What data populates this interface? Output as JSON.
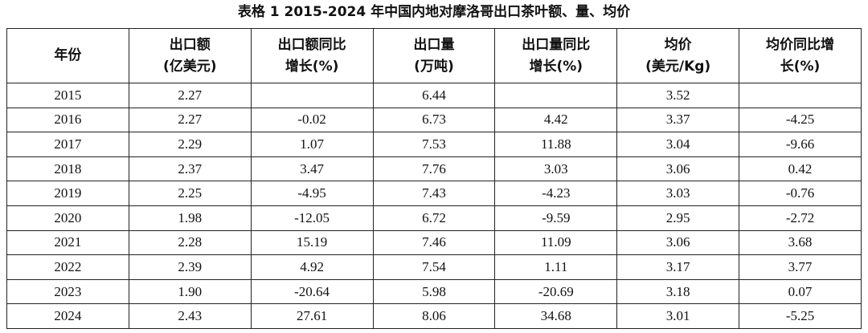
{
  "title": "表格 1 2015-2024 年中国内地对摩洛哥出口茶叶额、量、均价",
  "table": {
    "header": [
      [
        "年份"
      ],
      [
        "出口额",
        "(亿美元)"
      ],
      [
        "出口额同比",
        "增长(%)"
      ],
      [
        "出口量",
        "(万吨)"
      ],
      [
        "出口量同比",
        "增长(%)"
      ],
      [
        "均价",
        "(美元/Kg)"
      ],
      [
        "均价同比增",
        "长(%)"
      ]
    ],
    "rows": [
      [
        "2015",
        "2.27",
        null,
        "6.44",
        null,
        "3.52",
        null
      ],
      [
        "2016",
        "2.27",
        "-0.02",
        "6.73",
        "4.42",
        "3.37",
        "-4.25"
      ],
      [
        "2017",
        "2.29",
        "1.07",
        "7.53",
        "11.88",
        "3.04",
        "-9.66"
      ],
      [
        "2018",
        "2.37",
        "3.47",
        "7.76",
        "3.03",
        "3.06",
        "0.42"
      ],
      [
        "2019",
        "2.25",
        "-4.95",
        "7.43",
        "-4.23",
        "3.03",
        "-0.76"
      ],
      [
        "2020",
        "1.98",
        "-12.05",
        "6.72",
        "-9.59",
        "2.95",
        "-2.72"
      ],
      [
        "2021",
        "2.28",
        "15.19",
        "7.46",
        "11.09",
        "3.06",
        "3.68"
      ],
      [
        "2022",
        "2.39",
        "4.92",
        "7.54",
        "1.11",
        "3.17",
        "3.77"
      ],
      [
        "2023",
        "1.90",
        "-20.64",
        "5.98",
        "-20.69",
        "3.18",
        "0.07"
      ],
      [
        "2024",
        "2.43",
        "27.61",
        "8.06",
        "34.68",
        "3.01",
        "-5.25"
      ]
    ]
  }
}
